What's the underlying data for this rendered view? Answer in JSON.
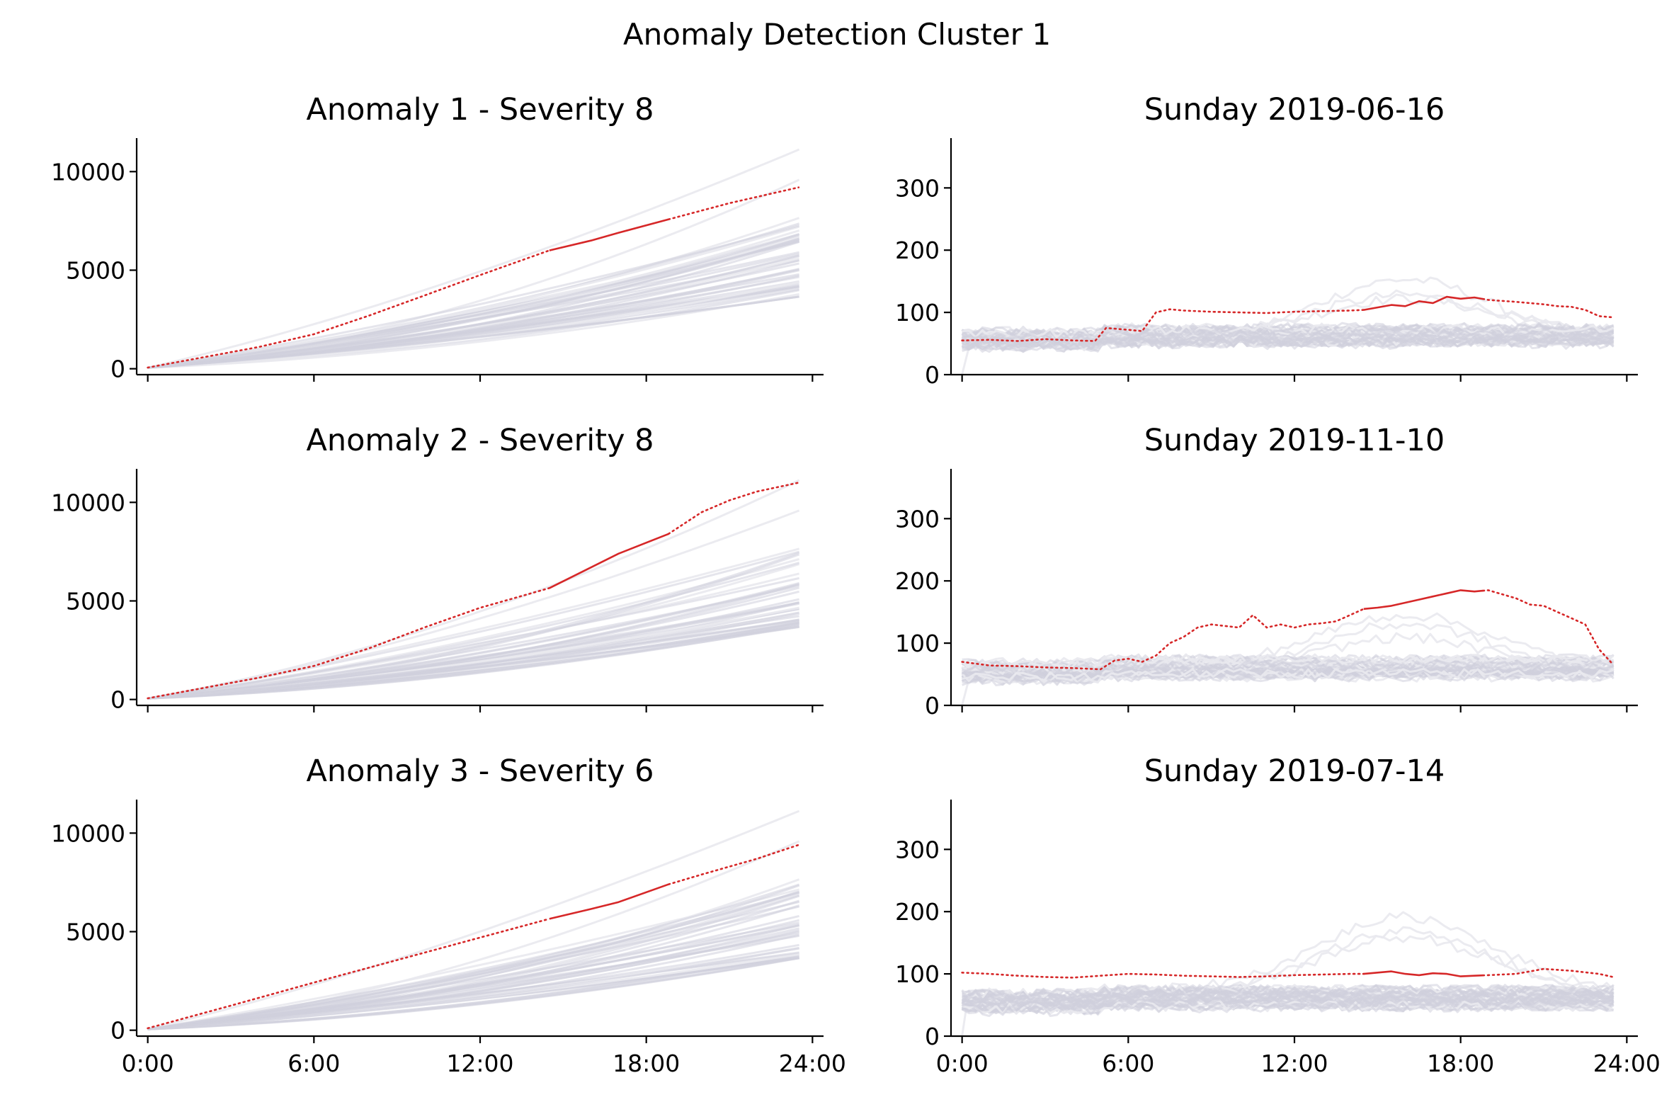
{
  "figure": {
    "title": "Anomaly Detection Cluster 1",
    "colors": {
      "background_lines": "#d0d0dc",
      "background_lines_light": "#e9e9ee",
      "highlight": "#d62728"
    }
  },
  "chart_data": [
    {
      "type": "line",
      "title": "Anomaly 1 - Severity 8",
      "panel": "cumulative",
      "xlabel": "",
      "ylabel": "",
      "xlim": [
        -0.4,
        24.4
      ],
      "ylim": [
        -300,
        11700
      ],
      "xticks": [
        0,
        6,
        12,
        18,
        24
      ],
      "xtick_labels": [
        "0:00",
        "6:00",
        "12:00",
        "18:00",
        "24:00"
      ],
      "show_xtick_labels": false,
      "yticks": [
        0,
        5000,
        10000
      ],
      "ytick_labels": [
        "0",
        "5000",
        "10000"
      ],
      "background_total_range": [
        3600,
        11000
      ],
      "highlight": {
        "x": [
          0,
          2,
          4,
          6,
          8,
          10,
          12,
          14.5,
          16,
          17,
          19,
          21,
          23.5
        ],
        "y": [
          60,
          580,
          1100,
          1750,
          2700,
          3720,
          4750,
          6000,
          6500,
          6900,
          7650,
          8400,
          9200
        ],
        "anomaly_window": [
          14.5,
          18.8
        ]
      }
    },
    {
      "type": "line",
      "title": "Sunday 2019-06-16",
      "panel": "rate",
      "xlabel": "",
      "ylabel": "",
      "xlim": [
        -0.4,
        24.4
      ],
      "ylim": [
        0,
        380
      ],
      "xticks": [
        0,
        6,
        12,
        18,
        24
      ],
      "xtick_labels": [
        "0:00",
        "6:00",
        "12:00",
        "18:00",
        "24:00"
      ],
      "show_xtick_labels": false,
      "yticks": [
        0,
        100,
        200,
        300
      ],
      "ytick_labels": [
        "0",
        "100",
        "200",
        "300"
      ],
      "highlight": {
        "x": [
          0,
          1,
          2,
          3,
          4,
          4.8,
          5.2,
          6,
          6.5,
          7,
          7.5,
          8,
          9,
          10,
          11,
          12,
          13,
          14,
          14.5,
          15,
          15.5,
          16,
          16.5,
          17,
          17.5,
          18,
          18.5,
          19,
          20,
          21,
          21.5,
          22,
          22.5,
          23,
          23.5
        ],
        "y": [
          55,
          56,
          54,
          57,
          55,
          54,
          75,
          72,
          70,
          100,
          105,
          103,
          101,
          100,
          99,
          101,
          102,
          103,
          104,
          108,
          112,
          110,
          118,
          115,
          125,
          122,
          124,
          120,
          117,
          113,
          110,
          109,
          104,
          94,
          92
        ],
        "anomaly_window": [
          14.5,
          18.8
        ]
      }
    },
    {
      "type": "line",
      "title": "Anomaly 2 - Severity 8",
      "panel": "cumulative",
      "xlabel": "",
      "ylabel": "",
      "xlim": [
        -0.4,
        24.4
      ],
      "ylim": [
        -300,
        11700
      ],
      "xticks": [
        0,
        6,
        12,
        18,
        24
      ],
      "xtick_labels": [
        "0:00",
        "6:00",
        "12:00",
        "18:00",
        "24:00"
      ],
      "show_xtick_labels": false,
      "yticks": [
        0,
        5000,
        10000
      ],
      "ytick_labels": [
        "0",
        "5000",
        "10000"
      ],
      "background_total_range": [
        3600,
        11000
      ],
      "highlight": {
        "x": [
          0,
          2,
          4,
          6,
          8,
          10,
          12,
          14.5,
          16,
          17,
          18.8,
          20,
          21,
          22,
          23.5
        ],
        "y": [
          60,
          580,
          1100,
          1700,
          2600,
          3660,
          4650,
          5650,
          6700,
          7400,
          8400,
          9500,
          10100,
          10550,
          11000
        ],
        "anomaly_window": [
          14.5,
          18.8
        ]
      }
    },
    {
      "type": "line",
      "title": "Sunday 2019-11-10",
      "panel": "rate",
      "xlabel": "",
      "ylabel": "",
      "xlim": [
        -0.4,
        24.4
      ],
      "ylim": [
        0,
        380
      ],
      "xticks": [
        0,
        6,
        12,
        18,
        24
      ],
      "xtick_labels": [
        "0:00",
        "6:00",
        "12:00",
        "18:00",
        "24:00"
      ],
      "show_xtick_labels": false,
      "yticks": [
        0,
        100,
        200,
        300
      ],
      "ytick_labels": [
        "0",
        "100",
        "200",
        "300"
      ],
      "highlight": {
        "x": [
          0,
          1,
          2,
          3,
          4,
          5,
          5.5,
          6,
          6.5,
          7,
          7.5,
          8,
          8.5,
          9,
          10,
          10.5,
          11,
          11.5,
          12,
          12.5,
          13,
          13.5,
          14,
          14.5,
          15,
          15.5,
          16,
          16.5,
          17,
          17.5,
          18,
          18.5,
          19,
          20,
          20.5,
          21,
          21.5,
          22,
          22.5,
          23,
          23.5
        ],
        "y": [
          70,
          64,
          63,
          61,
          60,
          58,
          72,
          75,
          70,
          80,
          100,
          110,
          125,
          130,
          125,
          145,
          125,
          130,
          125,
          130,
          132,
          135,
          145,
          155,
          157,
          160,
          165,
          170,
          175,
          180,
          185,
          183,
          185,
          172,
          162,
          160,
          150,
          140,
          130,
          90,
          66
        ],
        "anomaly_window": [
          14.5,
          18.8
        ]
      }
    },
    {
      "type": "line",
      "title": "Anomaly 3 - Severity 6",
      "panel": "cumulative",
      "xlabel": "",
      "ylabel": "",
      "xlim": [
        -0.4,
        24.4
      ],
      "ylim": [
        -300,
        11700
      ],
      "xticks": [
        0,
        6,
        12,
        18,
        24
      ],
      "xtick_labels": [
        "0:00",
        "6:00",
        "12:00",
        "18:00",
        "24:00"
      ],
      "show_xtick_labels": true,
      "yticks": [
        0,
        5000,
        10000
      ],
      "ytick_labels": [
        "0",
        "5000",
        "10000"
      ],
      "background_total_range": [
        3600,
        11000
      ],
      "highlight": {
        "x": [
          0,
          3,
          6,
          9,
          12,
          14.5,
          16,
          17,
          18.8,
          20,
          22,
          23.5
        ],
        "y": [
          100,
          1250,
          2420,
          3560,
          4700,
          5650,
          6150,
          6500,
          7400,
          7900,
          8700,
          9400
        ],
        "anomaly_window": [
          14.5,
          18.8
        ]
      }
    },
    {
      "type": "line",
      "title": "Sunday 2019-07-14",
      "panel": "rate",
      "xlabel": "",
      "ylabel": "",
      "xlim": [
        -0.4,
        24.4
      ],
      "ylim": [
        0,
        380
      ],
      "xticks": [
        0,
        6,
        12,
        18,
        24
      ],
      "xtick_labels": [
        "0:00",
        "6:00",
        "12:00",
        "18:00",
        "24:00"
      ],
      "show_xtick_labels": true,
      "yticks": [
        0,
        100,
        200,
        300
      ],
      "ytick_labels": [
        "0",
        "100",
        "200",
        "300"
      ],
      "highlight": {
        "x": [
          0,
          1,
          2,
          3,
          4,
          5,
          6,
          7,
          8,
          9,
          10,
          11,
          12,
          13,
          14,
          14.5,
          15,
          15.5,
          16,
          16.5,
          17,
          17.5,
          18,
          18.5,
          19,
          20,
          21,
          22,
          23,
          23.5
        ],
        "y": [
          102,
          100,
          97,
          95,
          94,
          97,
          100,
          99,
          97,
          96,
          95,
          96,
          98,
          99,
          100,
          100,
          102,
          104,
          100,
          98,
          101,
          100,
          96,
          97,
          98,
          100,
          108,
          105,
          100,
          95
        ],
        "anomaly_window": [
          14.5,
          18.8
        ]
      }
    }
  ]
}
